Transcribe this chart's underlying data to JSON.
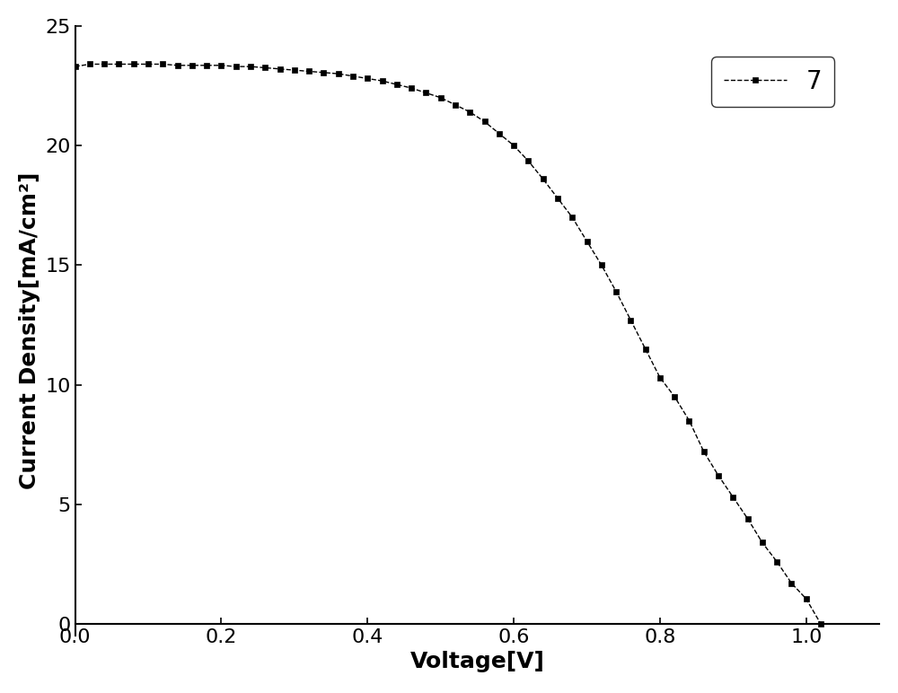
{
  "title": "",
  "xlabel": "Voltage[V]",
  "ylabel": "Current Density[mA/cm²]",
  "legend_label": "7",
  "line_color": "#000000",
  "marker": "s",
  "marker_color": "#000000",
  "marker_size": 5,
  "line_style": "--",
  "line_width": 1.0,
  "xlim": [
    0.0,
    1.1
  ],
  "ylim": [
    -0.5,
    25.0
  ],
  "xticks": [
    0.0,
    0.2,
    0.4,
    0.6,
    0.8,
    1.0
  ],
  "yticks": [
    0,
    5,
    10,
    15,
    20,
    25
  ],
  "xlabel_fontsize": 18,
  "ylabel_fontsize": 18,
  "tick_fontsize": 16,
  "legend_fontsize": 20,
  "x_data": [
    0.0,
    0.02,
    0.04,
    0.06,
    0.08,
    0.1,
    0.12,
    0.14,
    0.16,
    0.18,
    0.2,
    0.22,
    0.24,
    0.26,
    0.28,
    0.3,
    0.32,
    0.34,
    0.36,
    0.38,
    0.4,
    0.42,
    0.44,
    0.46,
    0.48,
    0.5,
    0.52,
    0.54,
    0.56,
    0.58,
    0.6,
    0.62,
    0.64,
    0.66,
    0.68,
    0.7,
    0.72,
    0.74,
    0.76,
    0.78,
    0.8,
    0.82,
    0.84,
    0.86,
    0.88,
    0.9,
    0.92,
    0.94,
    0.96,
    0.98,
    1.0,
    1.02
  ],
  "y_data": [
    23.3,
    23.4,
    23.4,
    23.4,
    23.4,
    23.4,
    23.4,
    23.35,
    23.35,
    23.35,
    23.35,
    23.3,
    23.3,
    23.25,
    23.2,
    23.15,
    23.1,
    23.05,
    23.0,
    22.9,
    22.8,
    22.7,
    22.55,
    22.4,
    22.2,
    22.0,
    21.7,
    21.4,
    21.0,
    20.5,
    20.0,
    19.35,
    18.6,
    17.8,
    17.0,
    16.0,
    15.0,
    13.9,
    12.7,
    11.5,
    10.3,
    9.5,
    8.5,
    7.2,
    6.2,
    5.3,
    4.4,
    3.4,
    2.6,
    1.7,
    1.05,
    0.0
  ]
}
